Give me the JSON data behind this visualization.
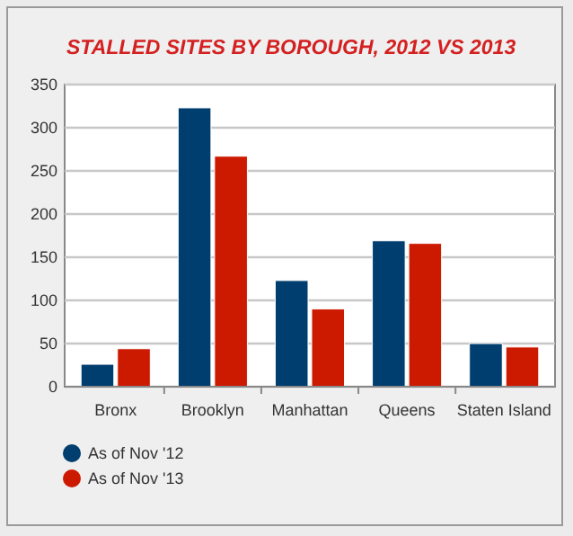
{
  "chart_data": {
    "type": "bar",
    "title": "STALLED SITES BY BOROUGH, 2012 VS 2013",
    "categories": [
      "Bronx",
      "Brooklyn",
      "Manhattan",
      "Queens",
      "Staten Island"
    ],
    "series": [
      {
        "name": "As of Nov '12",
        "color": "#003e6f",
        "values": [
          26,
          323,
          123,
          169,
          50
        ]
      },
      {
        "name": "As of Nov '13",
        "color": "#cc1a00",
        "values": [
          44,
          267,
          90,
          166,
          46
        ]
      }
    ],
    "ylim": [
      0,
      350
    ],
    "yticks": [
      0,
      50,
      100,
      150,
      200,
      250,
      300,
      350
    ],
    "grid": "y",
    "legend": "bottom left"
  }
}
